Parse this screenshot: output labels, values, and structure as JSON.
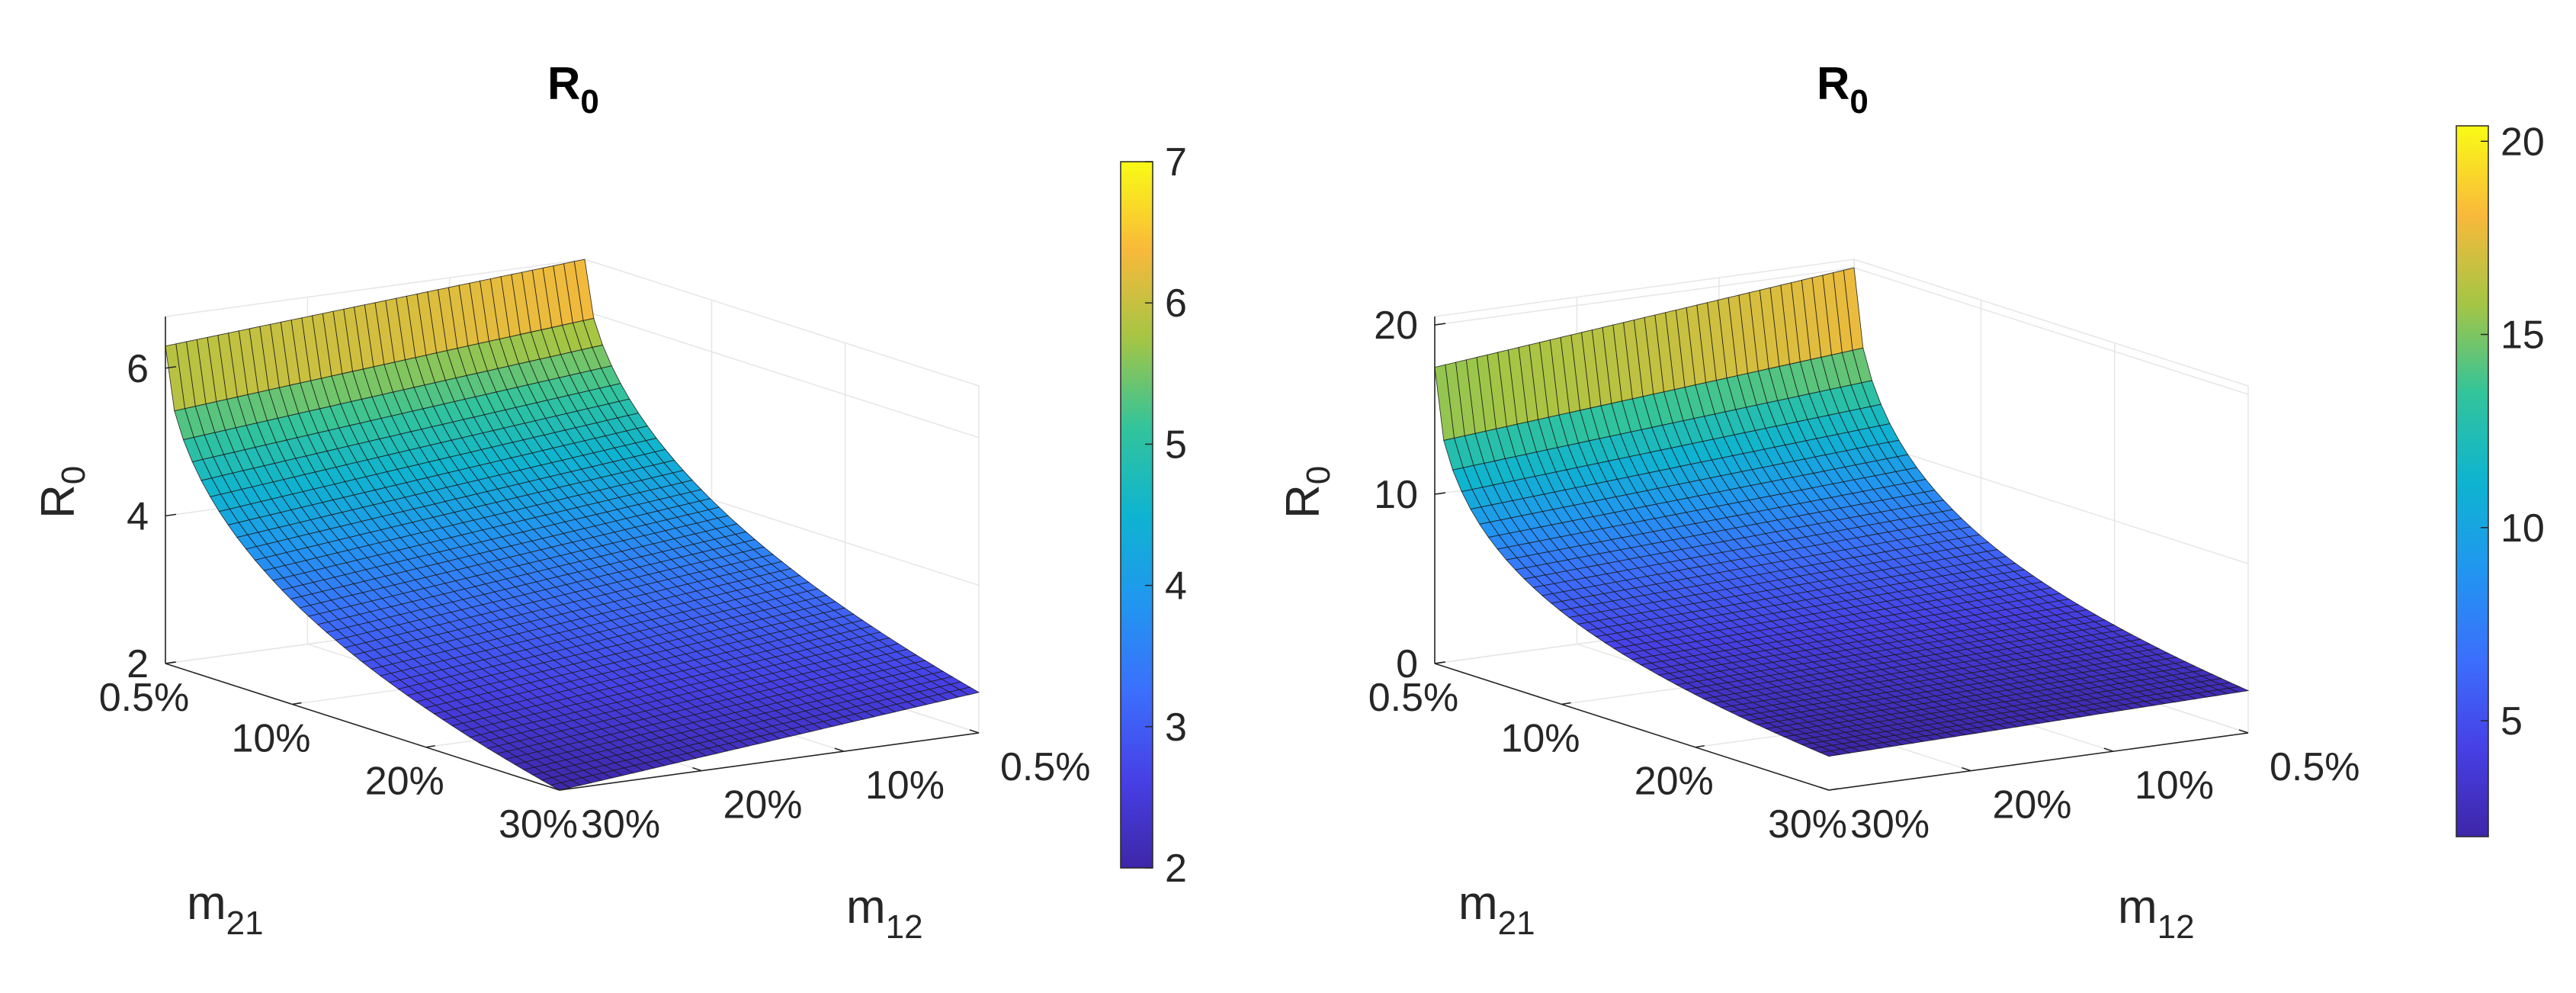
{
  "chart_data": [
    {
      "type": "surface",
      "title": "R",
      "title_subscript": "0",
      "zlabel": "R",
      "zlabel_subscript": "0",
      "xlabel": "m",
      "xlabel_subscript": "21",
      "ylabel": "m",
      "ylabel_subscript": "12",
      "x_ticks": [
        "0.5%",
        "10%",
        "20%",
        "30%"
      ],
      "y_ticks": [
        "0.5%",
        "10%",
        "20%",
        "30%"
      ],
      "x_range": [
        0.5,
        30
      ],
      "y_range": [
        0.5,
        30
      ],
      "z_ticks": [
        2,
        4,
        6
      ],
      "z_range": [
        2,
        6.7
      ],
      "corner_values": {
        "m21_0.5_m12_0.5": 6.7,
        "m21_30_m12_0.5": 2.55,
        "m21_0.5_m12_30": 6.3,
        "m21_30_m12_30": 2.0
      },
      "colorbar": {
        "ticks": [
          2,
          3,
          4,
          5,
          6,
          7
        ],
        "range": [
          2,
          7
        ],
        "colormap": "parula"
      }
    },
    {
      "type": "surface",
      "title": "R",
      "title_subscript": "0",
      "zlabel": "R",
      "zlabel_subscript": "0",
      "xlabel": "m",
      "xlabel_subscript": "21",
      "ylabel": "m",
      "ylabel_subscript": "12",
      "x_ticks": [
        "0.5%",
        "10%",
        "20%",
        "30%"
      ],
      "y_ticks": [
        "0.5%",
        "10%",
        "20%",
        "30%"
      ],
      "x_range": [
        0.5,
        30
      ],
      "y_range": [
        0.5,
        30
      ],
      "z_ticks": [
        0,
        10,
        20
      ],
      "z_range": [
        0,
        20.5
      ],
      "corner_values": {
        "m21_0.5_m12_0.5": 20.0,
        "m21_30_m12_0.5": 2.5,
        "m21_0.5_m12_30": 17.5,
        "m21_30_m12_30": 2.0
      },
      "colorbar": {
        "ticks": [
          5,
          10,
          15,
          20
        ],
        "range": [
          2,
          20.4
        ],
        "colormap": "parula"
      }
    }
  ]
}
